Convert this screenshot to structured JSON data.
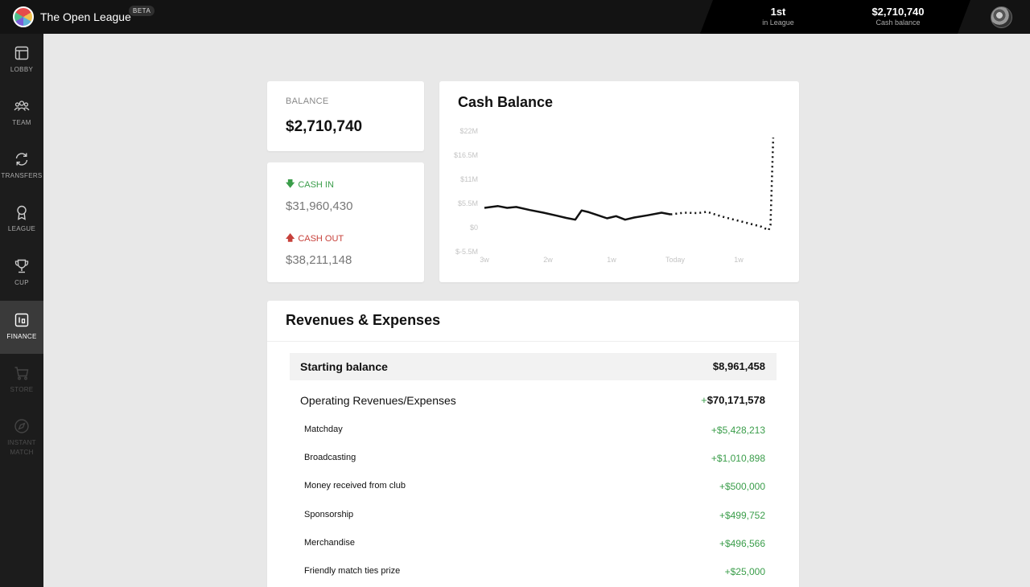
{
  "app": {
    "name": "The Open League",
    "badge": "BETA"
  },
  "top_stats": {
    "rank_value": "1st",
    "rank_label": "in League",
    "balance_value": "$2,710,740",
    "balance_label": "Cash balance"
  },
  "sidebar": {
    "items": [
      {
        "label": "LOBBY",
        "icon": "lobby-icon",
        "active": false,
        "disabled": false
      },
      {
        "label": "TEAM",
        "icon": "team-icon",
        "active": false,
        "disabled": false
      },
      {
        "label": "TRANSFERS",
        "icon": "transfers-icon",
        "active": false,
        "disabled": false
      },
      {
        "label": "LEAGUE",
        "icon": "medal-icon",
        "active": false,
        "disabled": false
      },
      {
        "label": "CUP",
        "icon": "trophy-icon",
        "active": false,
        "disabled": false
      },
      {
        "label": "FINANCE",
        "icon": "finance-icon",
        "active": true,
        "disabled": false
      },
      {
        "label": "STORE",
        "icon": "cart-icon",
        "active": false,
        "disabled": true
      },
      {
        "label": "INSTANT MATCH",
        "icon": "compass-icon",
        "active": false,
        "disabled": true
      }
    ]
  },
  "balance_card": {
    "label": "BALANCE",
    "value": "$2,710,740"
  },
  "cash_card": {
    "in_label": "CASH IN",
    "in_value": "$31,960,430",
    "out_label": "CASH OUT",
    "out_value": "$38,211,148"
  },
  "colors": {
    "positive": "#3a9d4a",
    "negative": "#c7403a",
    "active_nav": "#3a3a3a"
  },
  "chart_data": {
    "type": "line",
    "title": "Cash Balance",
    "y_ticks": [
      "$22M",
      "$16.5M",
      "$11M",
      "$5.5M",
      "$0",
      "$-5.5M"
    ],
    "y_tick_values": [
      22,
      16.5,
      11,
      5.5,
      0,
      -5.5
    ],
    "x_ticks": [
      "3w",
      "2w",
      "1w",
      "Today",
      "1w"
    ],
    "x_tick_days": [
      -21,
      -14,
      -7,
      0,
      7
    ],
    "ylim": [
      -5.5,
      22
    ],
    "unit": "$M",
    "series": [
      {
        "style": "solid",
        "points": [
          [
            -21,
            4.5
          ],
          [
            -19.5,
            4.9
          ],
          [
            -18.5,
            4.5
          ],
          [
            -17.5,
            4.7
          ],
          [
            -16,
            4.0
          ],
          [
            -14.5,
            3.4
          ],
          [
            -13,
            2.7
          ],
          [
            -12,
            2.2
          ],
          [
            -11,
            1.8
          ],
          [
            -10.3,
            3.9
          ],
          [
            -9.5,
            3.5
          ],
          [
            -8.5,
            2.8
          ],
          [
            -7.5,
            2.1
          ],
          [
            -6.5,
            2.6
          ],
          [
            -5.5,
            1.8
          ],
          [
            -4.5,
            2.3
          ],
          [
            -3,
            2.8
          ],
          [
            -1.5,
            3.4
          ],
          [
            -0.5,
            3.0
          ]
        ]
      },
      {
        "style": "dotted",
        "points": [
          [
            -0.5,
            3.0
          ],
          [
            1,
            3.4
          ],
          [
            2.5,
            3.3
          ],
          [
            3.5,
            3.6
          ],
          [
            5,
            2.6
          ],
          [
            6.5,
            1.8
          ],
          [
            8,
            1.0
          ],
          [
            9.5,
            0.2
          ],
          [
            10.3,
            -0.6
          ],
          [
            10.5,
            0.6
          ],
          [
            10.8,
            20.5
          ]
        ]
      }
    ]
  },
  "revenues": {
    "title": "Revenues & Expenses",
    "starting_label": "Starting balance",
    "starting_value": "$8,961,458",
    "operating_label": "Operating Revenues/Expenses",
    "operating_sign": "+",
    "operating_value": "$70,171,578",
    "lines": [
      {
        "label": "Matchday",
        "value": "+$5,428,213"
      },
      {
        "label": "Broadcasting",
        "value": "+$1,010,898"
      },
      {
        "label": "Money received from club",
        "value": "+$500,000"
      },
      {
        "label": "Sponsorship",
        "value": "+$499,752"
      },
      {
        "label": "Merchandise",
        "value": "+$496,566"
      },
      {
        "label": "Friendly match ties prize",
        "value": "+$25,000"
      }
    ]
  }
}
